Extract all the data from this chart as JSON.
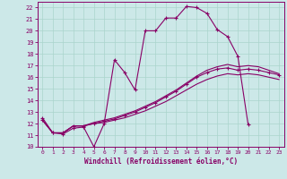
{
  "xlabel": "Windchill (Refroidissement éolien,°C)",
  "background_color": "#cce8e8",
  "grid_color": "#aad4cc",
  "line_color": "#880066",
  "xlim": [
    -0.5,
    23.5
  ],
  "ylim": [
    10,
    22.5
  ],
  "xticks": [
    0,
    1,
    2,
    3,
    4,
    5,
    6,
    7,
    8,
    9,
    10,
    11,
    12,
    13,
    14,
    15,
    16,
    17,
    18,
    19,
    20,
    21,
    22,
    23
  ],
  "yticks": [
    10,
    11,
    12,
    13,
    14,
    15,
    16,
    17,
    18,
    19,
    20,
    21,
    22
  ],
  "line1_x": [
    0,
    1,
    2,
    3,
    4,
    5,
    6,
    7,
    8,
    9,
    10,
    11,
    12,
    13,
    14,
    15,
    16,
    17,
    18,
    19,
    20
  ],
  "line1_y": [
    12.5,
    11.2,
    11.1,
    11.6,
    11.7,
    10.0,
    12.0,
    17.5,
    16.4,
    14.9,
    20.0,
    20.0,
    21.1,
    21.1,
    22.1,
    22.0,
    21.5,
    20.1,
    19.5,
    17.8,
    11.9
  ],
  "line2_x": [
    0,
    1,
    2,
    3,
    4,
    5,
    6,
    7,
    8,
    9,
    10,
    11,
    12,
    13,
    14,
    15,
    16,
    17,
    18,
    19,
    20,
    21,
    22,
    23
  ],
  "line2_y": [
    12.3,
    11.2,
    11.2,
    11.8,
    11.8,
    12.0,
    12.2,
    12.4,
    12.7,
    13.0,
    13.4,
    13.8,
    14.3,
    14.8,
    15.4,
    16.0,
    16.4,
    16.7,
    16.8,
    16.6,
    16.7,
    16.6,
    16.4,
    16.2
  ],
  "line3_x": [
    0,
    1,
    2,
    3,
    4,
    5,
    6,
    7,
    8,
    9,
    10,
    11,
    12,
    13,
    14,
    15,
    16,
    17,
    18,
    19,
    20,
    21,
    22,
    23
  ],
  "line3_y": [
    12.3,
    11.2,
    11.2,
    11.8,
    11.8,
    12.0,
    12.1,
    12.3,
    12.5,
    12.8,
    13.1,
    13.5,
    13.9,
    14.4,
    14.9,
    15.4,
    15.8,
    16.1,
    16.3,
    16.2,
    16.3,
    16.2,
    16.0,
    15.8
  ],
  "line4_x": [
    0,
    1,
    2,
    3,
    4,
    5,
    6,
    7,
    8,
    9,
    10,
    11,
    12,
    13,
    14,
    15,
    16,
    17,
    18,
    19,
    20,
    21,
    22,
    23
  ],
  "line4_y": [
    12.3,
    11.2,
    11.2,
    11.8,
    11.8,
    12.1,
    12.3,
    12.5,
    12.8,
    13.1,
    13.5,
    13.9,
    14.4,
    14.9,
    15.5,
    16.1,
    16.6,
    16.9,
    17.1,
    16.9,
    17.0,
    16.9,
    16.6,
    16.3
  ]
}
